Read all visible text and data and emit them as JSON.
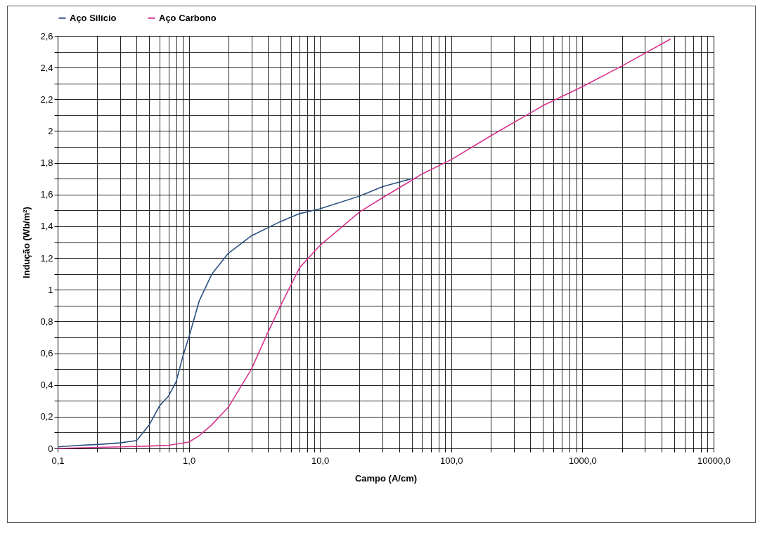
{
  "chart_data": {
    "type": "line",
    "xlabel": "Campo  (A/cm)",
    "ylabel": "Indução  (Wb/m²)",
    "log": "x",
    "grid": true,
    "legend": "top",
    "marker": "none",
    "line_style": "solid",
    "xlim": [
      0.1,
      10000
    ],
    "ylim": [
      0,
      2.6
    ],
    "xticks": [
      {
        "value": 0.1,
        "label": "0,1"
      },
      {
        "value": 0.2,
        "label": null
      },
      {
        "value": 0.3,
        "label": null
      },
      {
        "value": 0.4,
        "label": null
      },
      {
        "value": 0.5,
        "label": null
      },
      {
        "value": 0.6,
        "label": null
      },
      {
        "value": 0.7,
        "label": null
      },
      {
        "value": 0.8,
        "label": null
      },
      {
        "value": 0.9,
        "label": null
      },
      {
        "value": 1,
        "label": "1,0"
      },
      {
        "value": 2,
        "label": null
      },
      {
        "value": 3,
        "label": null
      },
      {
        "value": 4,
        "label": null
      },
      {
        "value": 5,
        "label": null
      },
      {
        "value": 6,
        "label": null
      },
      {
        "value": 7,
        "label": null
      },
      {
        "value": 8,
        "label": null
      },
      {
        "value": 9,
        "label": null
      },
      {
        "value": 10,
        "label": "10,0"
      },
      {
        "value": 20,
        "label": null
      },
      {
        "value": 30,
        "label": null
      },
      {
        "value": 40,
        "label": null
      },
      {
        "value": 50,
        "label": null
      },
      {
        "value": 60,
        "label": null
      },
      {
        "value": 70,
        "label": null
      },
      {
        "value": 80,
        "label": null
      },
      {
        "value": 90,
        "label": null
      },
      {
        "value": 100,
        "label": "100,0"
      },
      {
        "value": 200,
        "label": null
      },
      {
        "value": 300,
        "label": null
      },
      {
        "value": 400,
        "label": null
      },
      {
        "value": 500,
        "label": null
      },
      {
        "value": 600,
        "label": null
      },
      {
        "value": 700,
        "label": null
      },
      {
        "value": 800,
        "label": null
      },
      {
        "value": 900,
        "label": null
      },
      {
        "value": 1000,
        "label": "1000,0"
      },
      {
        "value": 2000,
        "label": null
      },
      {
        "value": 3000,
        "label": null
      },
      {
        "value": 4000,
        "label": null
      },
      {
        "value": 5000,
        "label": null
      },
      {
        "value": 6000,
        "label": null
      },
      {
        "value": 7000,
        "label": null
      },
      {
        "value": 8000,
        "label": null
      },
      {
        "value": 9000,
        "label": null
      },
      {
        "value": 10000,
        "label": "10000,0"
      }
    ],
    "yticks": [
      0,
      {
        "value": 0.1,
        "label": null
      },
      {
        "value": 0.2,
        "label": "0,2"
      },
      {
        "value": 0.3,
        "label": null
      },
      {
        "value": 0.4,
        "label": "0,4"
      },
      {
        "value": 0.5,
        "label": null
      },
      {
        "value": 0.6,
        "label": "0,6"
      },
      {
        "value": 0.7,
        "label": null
      },
      {
        "value": 0.8,
        "label": "0,8"
      },
      {
        "value": 0.9,
        "label": null
      },
      1,
      {
        "value": 1.1,
        "label": null
      },
      {
        "value": 1.2,
        "label": "1,2"
      },
      {
        "value": 1.3,
        "label": null
      },
      {
        "value": 1.4,
        "label": "1,4"
      },
      {
        "value": 1.5,
        "label": null
      },
      {
        "value": 1.6,
        "label": "1,6"
      },
      {
        "value": 1.7,
        "label": null
      },
      {
        "value": 1.8,
        "label": "1,8"
      },
      {
        "value": 1.9,
        "label": null
      },
      2,
      {
        "value": 2.1,
        "label": null
      },
      {
        "value": 2.2,
        "label": "2,2"
      },
      {
        "value": 2.3,
        "label": null
      },
      {
        "value": 2.4,
        "label": "2,4"
      },
      {
        "value": 2.5,
        "label": null
      },
      {
        "value": 2.6,
        "label": "2,6"
      }
    ],
    "series": [
      {
        "name": "Aço Silício",
        "color": "#2b4f80",
        "x": [
          0.1,
          0.15,
          0.2,
          0.3,
          0.4,
          0.5,
          0.6,
          0.7,
          0.8,
          0.9,
          1.0,
          1.2,
          1.5,
          2,
          3,
          5,
          7,
          10,
          20,
          30,
          50
        ],
        "values": [
          0.01,
          0.02,
          0.025,
          0.035,
          0.05,
          0.15,
          0.27,
          0.33,
          0.42,
          0.58,
          0.7,
          0.93,
          1.1,
          1.23,
          1.34,
          1.43,
          1.48,
          1.51,
          1.59,
          1.65,
          1.7
        ]
      },
      {
        "name": "Aço Carbono",
        "color": "#d6348c",
        "x": [
          0.1,
          0.3,
          0.5,
          0.7,
          1.0,
          1.2,
          1.5,
          2,
          3,
          4,
          5,
          7,
          10,
          20,
          30,
          50,
          60,
          100,
          200,
          500,
          1000,
          2000,
          4700
        ],
        "values": [
          0,
          0.01,
          0.015,
          0.02,
          0.04,
          0.08,
          0.15,
          0.26,
          0.5,
          0.73,
          0.9,
          1.14,
          1.28,
          1.49,
          1.58,
          1.69,
          1.73,
          1.82,
          1.97,
          2.16,
          2.28,
          2.41,
          2.58
        ]
      }
    ]
  }
}
